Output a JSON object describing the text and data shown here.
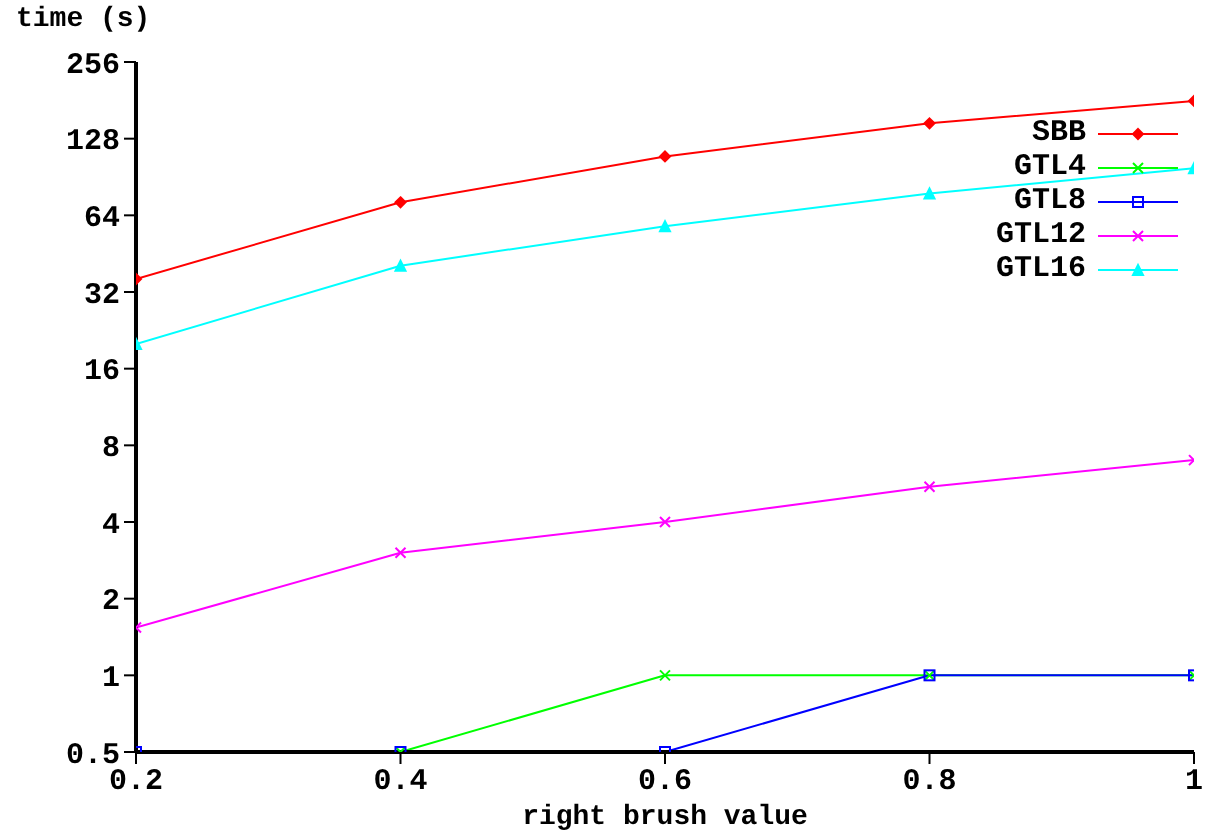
{
  "chart_data": {
    "type": "line",
    "xlabel": "right brush value",
    "ylabel": "time (s)",
    "x": [
      0.2,
      0.4,
      0.6,
      0.8,
      1
    ],
    "xlim": [
      0.2,
      1
    ],
    "xticks": [
      0.2,
      0.4,
      0.6,
      0.8,
      1
    ],
    "log": "y",
    "ylim": [
      0.5,
      256
    ],
    "yticks": [
      0.5,
      1,
      2,
      4,
      8,
      16,
      32,
      64,
      128,
      256
    ],
    "grid": false,
    "legend": "top right",
    "series": [
      {
        "name": "SBB",
        "color": "#ff0000",
        "marker": "diamond",
        "values": [
          36,
          72,
          109,
          147,
          180
        ]
      },
      {
        "name": "GTL4",
        "color": "#00ff00",
        "marker": "cross",
        "values": [
          null,
          0.5,
          1,
          1,
          1
        ]
      },
      {
        "name": "GTL8",
        "color": "#0000ff",
        "marker": "square",
        "values": [
          0.5,
          0.5,
          0.5,
          1,
          1
        ]
      },
      {
        "name": "GTL12",
        "color": "#ff00ff",
        "marker": "cross",
        "values": [
          1.54,
          3.03,
          4,
          5.5,
          7
        ]
      },
      {
        "name": "GTL16",
        "color": "#00ffff",
        "marker": "triangle",
        "values": [
          20,
          40.6,
          58,
          78,
          98
        ]
      }
    ]
  }
}
